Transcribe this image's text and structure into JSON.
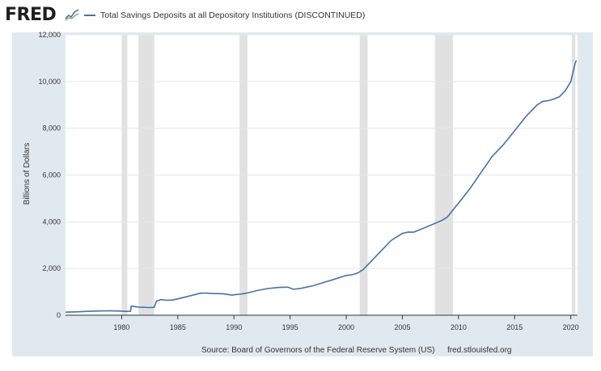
{
  "header": {
    "logo_text": "FRED",
    "logo_icon": "fred-chart-icon",
    "series_title": "Total Savings Deposits at all Depository Institutions (DISCONTINUED)"
  },
  "footer": {
    "source": "Source: Board of Governors of the Federal Reserve System (US)",
    "site": "fred.stlouisfed.org"
  },
  "colors": {
    "line": "#4572a7",
    "recession": "#e1e1e1",
    "panel": "#e1e9f0",
    "grid": "#e6e6e6"
  },
  "chart_data": {
    "type": "line",
    "title": "Total Savings Deposits at all Depository Institutions (DISCONTINUED)",
    "ylabel": "Billions of Dollars",
    "xlabel": "",
    "ylim": [
      0,
      12000
    ],
    "xlim": [
      1975.0,
      2020.6
    ],
    "yticks": [
      0,
      2000,
      4000,
      6000,
      8000,
      10000,
      12000
    ],
    "ytick_labels": [
      "0",
      "2,000",
      "4,000",
      "6,000",
      "8,000",
      "10,000",
      "12,000"
    ],
    "xticks": [
      1980,
      1985,
      1990,
      1995,
      2000,
      2005,
      2010,
      2015,
      2020
    ],
    "xtick_labels": [
      "1980",
      "1985",
      "1990",
      "1995",
      "2000",
      "2005",
      "2010",
      "2015",
      "2020"
    ],
    "grid": true,
    "recessions": [
      [
        1980.0,
        1980.5
      ],
      [
        1981.5,
        1982.9
      ],
      [
        1990.5,
        1991.2
      ],
      [
        2001.2,
        2001.9
      ],
      [
        2007.9,
        2009.5
      ],
      [
        2020.1,
        2020.4
      ]
    ],
    "series": [
      {
        "x": [
          1975.0,
          1976.0,
          1977.0,
          1978.0,
          1979.0,
          1979.8,
          1980.3,
          1980.8,
          1980.85,
          1981.5,
          1982.5,
          1982.9,
          1983.1,
          1983.5,
          1984.0,
          1984.5,
          1985.0,
          1986.0,
          1987.0,
          1987.5,
          1988.0,
          1989.0,
          1989.8,
          1990.5,
          1991.0,
          1992.0,
          1993.0,
          1994.0,
          1994.8,
          1995.3,
          1996.0,
          1997.0,
          1998.0,
          1999.0,
          2000.0,
          2000.5,
          2001.0,
          2001.5,
          2002.0,
          2003.0,
          2004.0,
          2004.5,
          2005.0,
          2005.5,
          2006.0,
          2007.0,
          2007.5,
          2008.0,
          2008.5,
          2009.0,
          2009.5,
          2010.0,
          2011.0,
          2012.0,
          2013.0,
          2014.0,
          2015.0,
          2016.0,
          2017.0,
          2017.5,
          2018.0,
          2018.5,
          2019.0,
          2019.5,
          2020.0,
          2020.2,
          2020.4,
          2020.5
        ],
        "values": [
          130,
          145,
          165,
          185,
          190,
          180,
          165,
          170,
          390,
          350,
          330,
          340,
          600,
          670,
          640,
          650,
          700,
          820,
          940,
          950,
          930,
          920,
          860,
          900,
          930,
          1050,
          1140,
          1190,
          1200,
          1110,
          1150,
          1260,
          1400,
          1550,
          1700,
          1730,
          1800,
          1950,
          2200,
          2700,
          3200,
          3350,
          3500,
          3560,
          3550,
          3750,
          3850,
          3950,
          4050,
          4200,
          4500,
          4800,
          5400,
          6100,
          6800,
          7300,
          7900,
          8500,
          9000,
          9150,
          9180,
          9250,
          9350,
          9600,
          10000,
          10400,
          10800,
          10900
        ]
      }
    ]
  }
}
